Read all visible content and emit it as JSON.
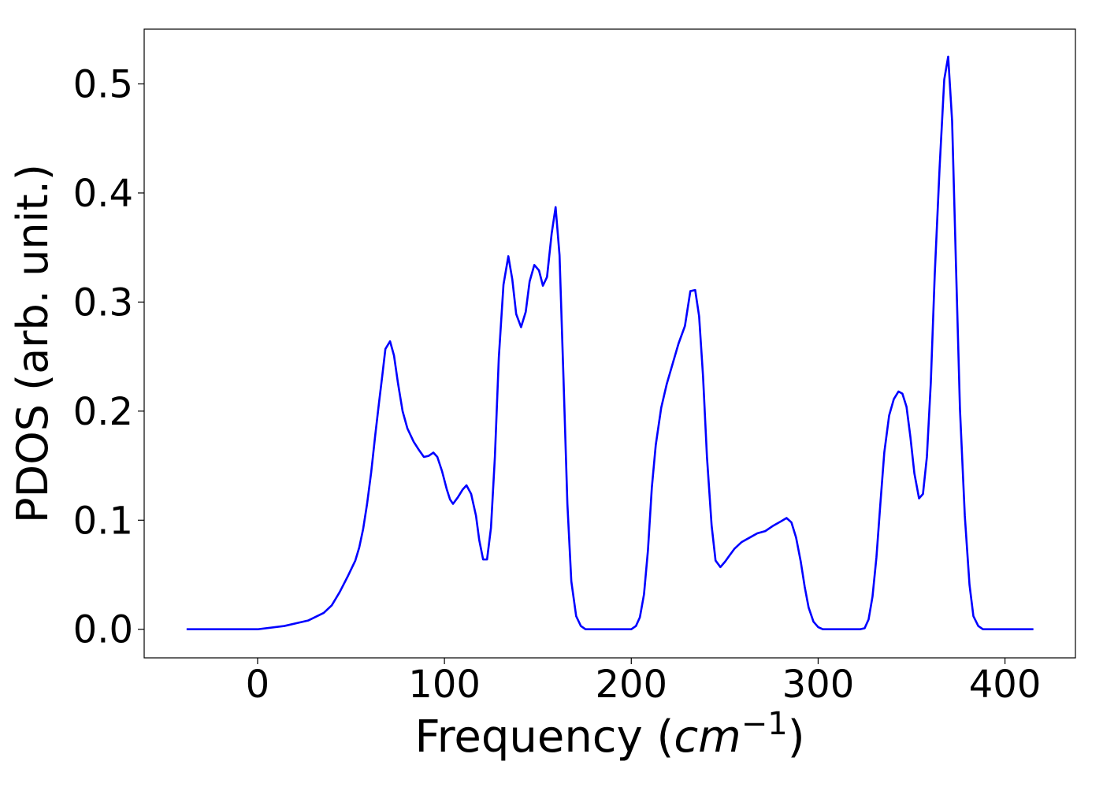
{
  "chart_data": {
    "type": "line",
    "xlabel": [
      "Frequency (",
      "cm",
      "−1",
      ")"
    ],
    "ylabel": "PDOS (arb. unit.)",
    "color": "#0000ff",
    "x": [
      -38,
      0,
      14.3,
      27,
      35.4,
      39.7,
      43.9,
      48.1,
      52.3,
      54.4,
      56.5,
      58.6,
      60.8,
      62.9,
      65,
      66.7,
      68.4,
      70.9,
      73,
      75.1,
      77.6,
      80.2,
      83.5,
      86.5,
      89,
      91.6,
      94.1,
      96.2,
      98.7,
      101.3,
      103,
      104.6,
      107.2,
      109.7,
      111.8,
      114.3,
      116.9,
      118.6,
      120.7,
      122.8,
      124.9,
      127,
      129.1,
      131.6,
      134.2,
      136.3,
      138.4,
      141,
      143.5,
      145.6,
      148.1,
      150.6,
      152.7,
      154.9,
      157.4,
      159.5,
      161.6,
      163.7,
      165.8,
      167.9,
      170.5,
      173,
      175.5,
      200,
      202.5,
      204.6,
      206.8,
      208.9,
      211,
      213.1,
      216,
      219,
      222.4,
      225.3,
      228.7,
      231.6,
      234.2,
      236.3,
      238.4,
      240.5,
      243,
      245.1,
      247.7,
      250.2,
      252.7,
      255.3,
      259.1,
      263.3,
      267.5,
      271.7,
      276,
      280.2,
      283.1,
      285.7,
      288.2,
      290.7,
      292.8,
      294.9,
      297.5,
      300,
      302.5,
      322.4,
      324.9,
      327,
      329.1,
      331.2,
      333.3,
      335.4,
      338,
      340.5,
      343,
      345.1,
      347.3,
      349.4,
      351.5,
      354,
      356.1,
      358.2,
      360.3,
      362.4,
      365,
      367.5,
      369.6,
      371.7,
      373.8,
      375.9,
      378.5,
      381,
      383.1,
      385.7,
      388.2,
      415.2
    ],
    "values": [
      0,
      0,
      0.003,
      0.008,
      0.015,
      0.022,
      0.034,
      0.048,
      0.063,
      0.075,
      0.092,
      0.115,
      0.144,
      0.177,
      0.208,
      0.232,
      0.257,
      0.264,
      0.251,
      0.226,
      0.2,
      0.184,
      0.172,
      0.164,
      0.158,
      0.159,
      0.162,
      0.158,
      0.145,
      0.128,
      0.119,
      0.115,
      0.121,
      0.128,
      0.132,
      0.124,
      0.104,
      0.082,
      0.064,
      0.064,
      0.093,
      0.158,
      0.249,
      0.316,
      0.342,
      0.321,
      0.289,
      0.277,
      0.291,
      0.319,
      0.334,
      0.329,
      0.315,
      0.323,
      0.363,
      0.387,
      0.343,
      0.231,
      0.115,
      0.044,
      0.012,
      0.003,
      0,
      0,
      0.003,
      0.011,
      0.032,
      0.072,
      0.13,
      0.169,
      0.203,
      0.225,
      0.245,
      0.262,
      0.278,
      0.31,
      0.311,
      0.287,
      0.232,
      0.158,
      0.095,
      0.063,
      0.057,
      0.062,
      0.068,
      0.074,
      0.08,
      0.084,
      0.088,
      0.09,
      0.095,
      0.099,
      0.102,
      0.098,
      0.084,
      0.062,
      0.039,
      0.02,
      0.007,
      0.002,
      0,
      0,
      0.001,
      0.009,
      0.03,
      0.066,
      0.115,
      0.162,
      0.196,
      0.211,
      0.218,
      0.216,
      0.204,
      0.176,
      0.143,
      0.12,
      0.124,
      0.158,
      0.226,
      0.325,
      0.423,
      0.504,
      0.525,
      0.466,
      0.332,
      0.202,
      0.104,
      0.041,
      0.012,
      0.003,
      0,
      0
    ],
    "xlim": [
      -60.7,
      437.7
    ],
    "xticks": [
      0,
      100,
      200,
      300,
      400
    ],
    "ylim": [
      -0.0262,
      0.5502
    ],
    "yticks": [
      {
        "value": 0,
        "label": "0.0"
      },
      0.1,
      0.2,
      0.3,
      0.4,
      0.5
    ]
  }
}
